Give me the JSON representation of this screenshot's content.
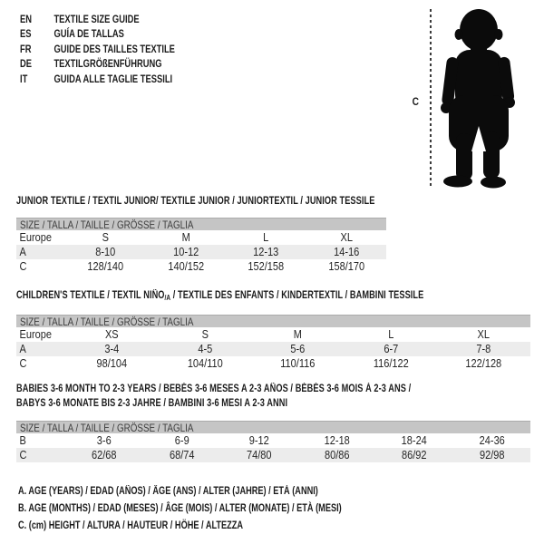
{
  "header": {
    "languages": [
      {
        "code": "EN",
        "title": "TEXTILE SIZE GUIDE"
      },
      {
        "code": "ES",
        "title": "GUÍA DE TALLAS"
      },
      {
        "code": "FR",
        "title": "GUIDE DES TAILLES TEXTILE"
      },
      {
        "code": "DE",
        "title": "TEXTILGRÖßENFÜHRUNG"
      },
      {
        "code": "IT",
        "title": "GUIDA ALLE TAGLIE TESSILI"
      }
    ]
  },
  "figure": {
    "silhouette": "baby-toddler-silhouette",
    "height_label": "C"
  },
  "tables": [
    {
      "title": "JUNIOR TEXTILE / TEXTIL JUNIOR/ TEXTILE JUNIOR / JUNIORTEXTIL / JUNIOR TESSILE",
      "size_header": "SIZE / TALLA / TAILLE / GRÖSSE / TAGLIA",
      "rows": [
        {
          "label": "Europe",
          "cells": [
            "S",
            "M",
            "L",
            "XL"
          ]
        },
        {
          "label": "A",
          "cells": [
            "8-10",
            "10-12",
            "12-13",
            "14-16"
          ]
        },
        {
          "label": "C",
          "cells": [
            "128/140",
            "140/152",
            "152/158",
            "158/170"
          ]
        }
      ]
    },
    {
      "title_parts": [
        "CHILDREN'S TEXTILE / TEXTIL NIÑO",
        "/A",
        " / TEXTILE DES ENFANTS / KINDERTEXTIL / BAMBINI TESSILE"
      ],
      "size_header": "SIZE / TALLA / TAILLE / GRÖSSE / TAGLIA",
      "rows": [
        {
          "label": "Europe",
          "cells": [
            "XS",
            "S",
            "M",
            "L",
            "XL"
          ]
        },
        {
          "label": "A",
          "cells": [
            "3-4",
            "4-5",
            "5-6",
            "6-7",
            "7-8"
          ]
        },
        {
          "label": "C",
          "cells": [
            "98/104",
            "104/110",
            "110/116",
            "116/122",
            "122/128"
          ]
        }
      ]
    },
    {
      "title_lines": [
        "BABIES 3-6 MONTH TO 2-3 YEARS / BEBÉS 3-6 MESES A 2-3 AÑOS / BÉBÉS 3-6 MOIS À 2-3 ANS /",
        "BABYS 3-6 MONATE BIS 2-3 JAHRE / BAMBINI 3-6 MESI A 2-3 ANNI"
      ],
      "size_header": "SIZE / TALLA / TAILLE / GRÖSSE / TAGLIA",
      "rows": [
        {
          "label": "B",
          "cells": [
            "3-6",
            "6-9",
            "9-12",
            "12-18",
            "18-24",
            "24-36"
          ]
        },
        {
          "label": "C",
          "cells": [
            "62/68",
            "68/74",
            "74/80",
            "80/86",
            "86/92",
            "92/98"
          ]
        }
      ]
    }
  ],
  "footnotes": [
    "A. AGE (YEARS) / EDAD (AÑOS) / ÂGE (ANS) / ALTER (JAHRE) / ETÀ (ANNI)",
    "B. AGE (MONTHS) / EDAD (MESES) / ÂGE (MOIS) / ALTER (MONATE) / ETÀ (MESI)",
    "C. (cm) HEIGHT / ALTURA / HAUTEUR / HÖHE / ALTEZZA"
  ],
  "colors": {
    "size_header_bar": "#c5c5c5",
    "alt_row": "#ececec",
    "text": "#1c1c1c",
    "silhouette": "#0b0b0b"
  }
}
